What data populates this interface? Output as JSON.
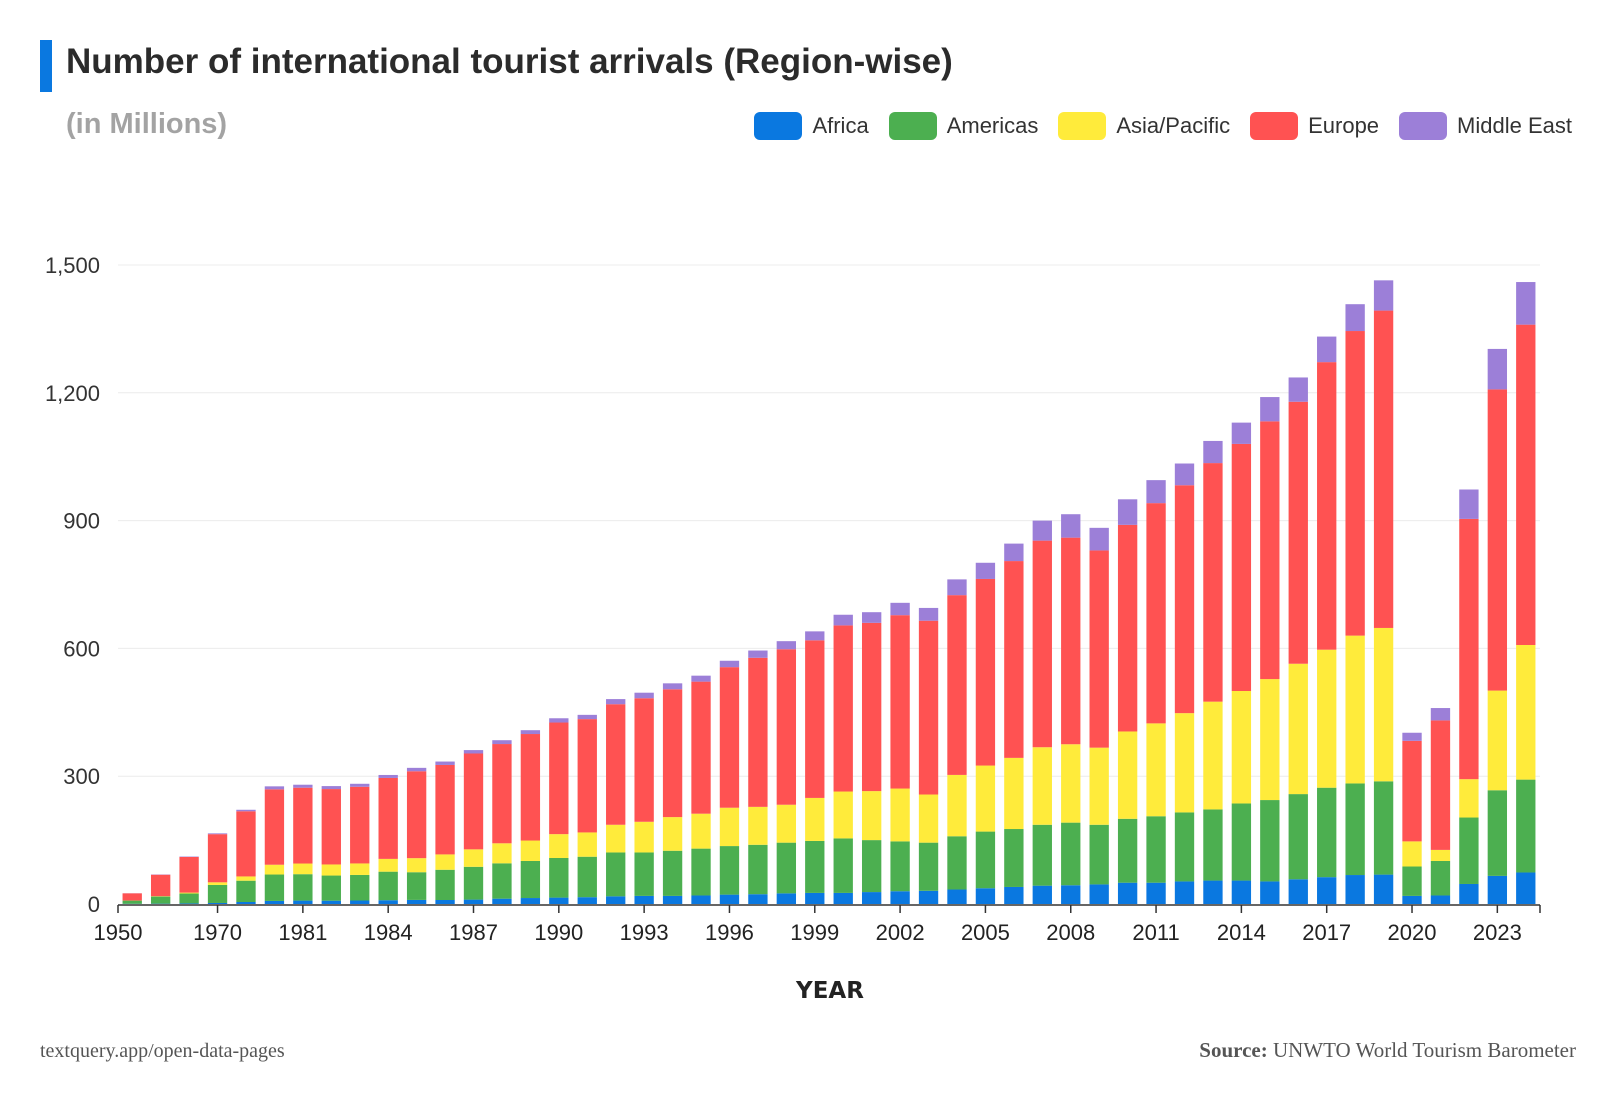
{
  "chart_data": {
    "type": "bar",
    "stacked": true,
    "title": "Number of international tourist arrivals (Region-wise)",
    "subtitle": "(in Millions)",
    "xlabel": "YEAR",
    "ylabel": "",
    "ylim": [
      0,
      1500
    ],
    "yticks": [
      0,
      300,
      600,
      900,
      1200,
      1500
    ],
    "ytick_labels": [
      "0",
      "300",
      "600",
      "900",
      "1,200",
      "1,500"
    ],
    "grid": true,
    "legend_position": "top-right",
    "categories": [
      "1950",
      "1960",
      "1965",
      "1970",
      "1975",
      "1980",
      "1981",
      "1982",
      "1983",
      "1984",
      "1985",
      "1986",
      "1987",
      "1988",
      "1989",
      "1990",
      "1991",
      "1992",
      "1993",
      "1994",
      "1995",
      "1996",
      "1997",
      "1998",
      "1999",
      "2000",
      "2001",
      "2002",
      "2003",
      "2004",
      "2005",
      "2006",
      "2007",
      "2008",
      "2009",
      "2010",
      "2011",
      "2012",
      "2013",
      "2014",
      "2015",
      "2016",
      "2017",
      "2018",
      "2019",
      "2020",
      "2021",
      "2022",
      "2023",
      "2024"
    ],
    "xtick_labels": [
      "1950",
      "1970",
      "1981",
      "1984",
      "1987",
      "1990",
      "1993",
      "1996",
      "1999",
      "2002",
      "2005",
      "2008",
      "2011",
      "2014",
      "2017",
      "2020",
      "2023"
    ],
    "series": [
      {
        "name": "Africa",
        "color": "#0a78e0",
        "values": [
          0.5,
          0.8,
          1.4,
          2.4,
          4.7,
          7.2,
          8,
          7.8,
          8.2,
          8.9,
          9.6,
          9.4,
          10.3,
          12.5,
          14,
          15,
          16,
          18,
          19,
          19,
          20,
          22,
          23,
          25,
          26,
          26,
          28,
          30,
          31,
          34,
          37,
          40,
          43,
          44,
          46,
          50,
          50,
          53,
          55,
          55,
          53,
          58,
          63,
          68,
          69,
          19,
          20,
          47,
          66,
          74
        ]
      },
      {
        "name": "Americas",
        "color": "#4caf50",
        "values": [
          7.5,
          16.7,
          23.2,
          42.3,
          50,
          62,
          62,
          59,
          60,
          67,
          65,
          71,
          77,
          83,
          87,
          93,
          95,
          103,
          102,
          106,
          110,
          114,
          116,
          119,
          122,
          128,
          122,
          117,
          113,
          125,
          133,
          136,
          143,
          147,
          140,
          150,
          156,
          162,
          167,
          181,
          191,
          200,
          210,
          215,
          219,
          69,
          81,
          156,
          201,
          218
        ]
      },
      {
        "name": "Asia/Pacific",
        "color": "#ffeb3b",
        "values": [
          0.2,
          0.9,
          2.1,
          6.2,
          10,
          23,
          25,
          26,
          27,
          30,
          33,
          36,
          41,
          47,
          48,
          56,
          57,
          65,
          72,
          79,
          82,
          90,
          89,
          89,
          101,
          110,
          115,
          124,
          113,
          144,
          155,
          167,
          182,
          184,
          181,
          205,
          218,
          233,
          253,
          264,
          284,
          306,
          324,
          347,
          360,
          59,
          26,
          90,
          234,
          316
        ]
      },
      {
        "name": "Europe",
        "color": "#ff5252",
        "values": [
          16.8,
          50.4,
          83.7,
          113,
          153,
          177,
          178,
          177,
          180,
          190,
          204,
          210,
          225,
          233,
          250,
          262,
          266,
          283,
          290,
          300,
          310,
          330,
          350,
          365,
          370,
          390,
          395,
          407,
          408,
          422,
          438,
          462,
          485,
          485,
          463,
          485,
          517,
          535,
          560,
          580,
          605,
          615,
          675,
          715,
          745,
          236,
          304,
          611,
          707,
          752
        ]
      },
      {
        "name": "Middle East",
        "color": "#9c7fd8",
        "values": [
          0.2,
          0.6,
          1,
          1.9,
          3.5,
          7,
          7,
          7,
          7,
          7,
          8,
          8,
          8,
          9,
          9,
          10,
          10,
          12,
          13,
          14,
          14,
          15,
          17,
          19,
          21,
          25,
          25,
          29,
          30,
          37,
          38,
          41,
          47,
          55,
          53,
          60,
          54,
          51,
          52,
          50,
          57,
          57,
          60,
          63,
          71,
          19,
          29,
          69,
          95,
          100
        ]
      }
    ]
  },
  "footer": {
    "left": "textquery.app/open-data-pages",
    "source_label": "Source:",
    "source_text": "UNWTO World Tourism Barometer"
  }
}
